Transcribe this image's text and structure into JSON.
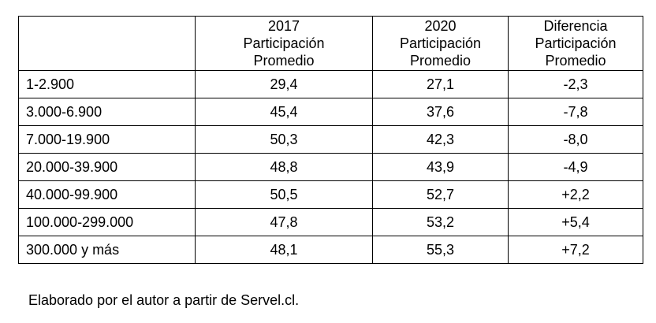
{
  "table": {
    "headers": [
      {
        "lines": []
      },
      {
        "lines": [
          "2017",
          "Participación",
          "Promedio"
        ]
      },
      {
        "lines": [
          "2020",
          "Participación",
          "Promedio"
        ]
      },
      {
        "lines": [
          "Diferencia",
          "Participación",
          "Promedio"
        ]
      }
    ],
    "rows": [
      {
        "range": "1-2.900",
        "y2017": "29,4",
        "y2020": "27,1",
        "diff": "-2,3",
        "bold": [
          false,
          false,
          false
        ]
      },
      {
        "range": "3.000-6.900",
        "y2017": "45,4",
        "y2020": "37,6",
        "diff": "-7,8",
        "bold": [
          false,
          false,
          false
        ]
      },
      {
        "range": "7.000-19.900",
        "y2017": "50,3",
        "y2020": "42,3",
        "diff": "-8,0",
        "bold": [
          true,
          false,
          false
        ]
      },
      {
        "range": "20.000-39.900",
        "y2017": "48,8",
        "y2020": "43,9",
        "diff": "-4,9",
        "bold": [
          false,
          false,
          false
        ]
      },
      {
        "range": "40.000-99.900",
        "y2017": "50,5",
        "y2020": "52,7",
        "diff": "+2,2",
        "bold": [
          true,
          true,
          true
        ]
      },
      {
        "range": "100.000-299.000",
        "y2017": "47,8",
        "y2020": "53,2",
        "diff": "+5,4",
        "bold": [
          false,
          true,
          true
        ]
      },
      {
        "range": "300.000 y más",
        "y2017": "48,1",
        "y2020": "55,3",
        "diff": "+7,2",
        "bold": [
          false,
          true,
          true
        ]
      }
    ]
  },
  "footnote": "Elaborado por el autor a partir de Servel.cl."
}
